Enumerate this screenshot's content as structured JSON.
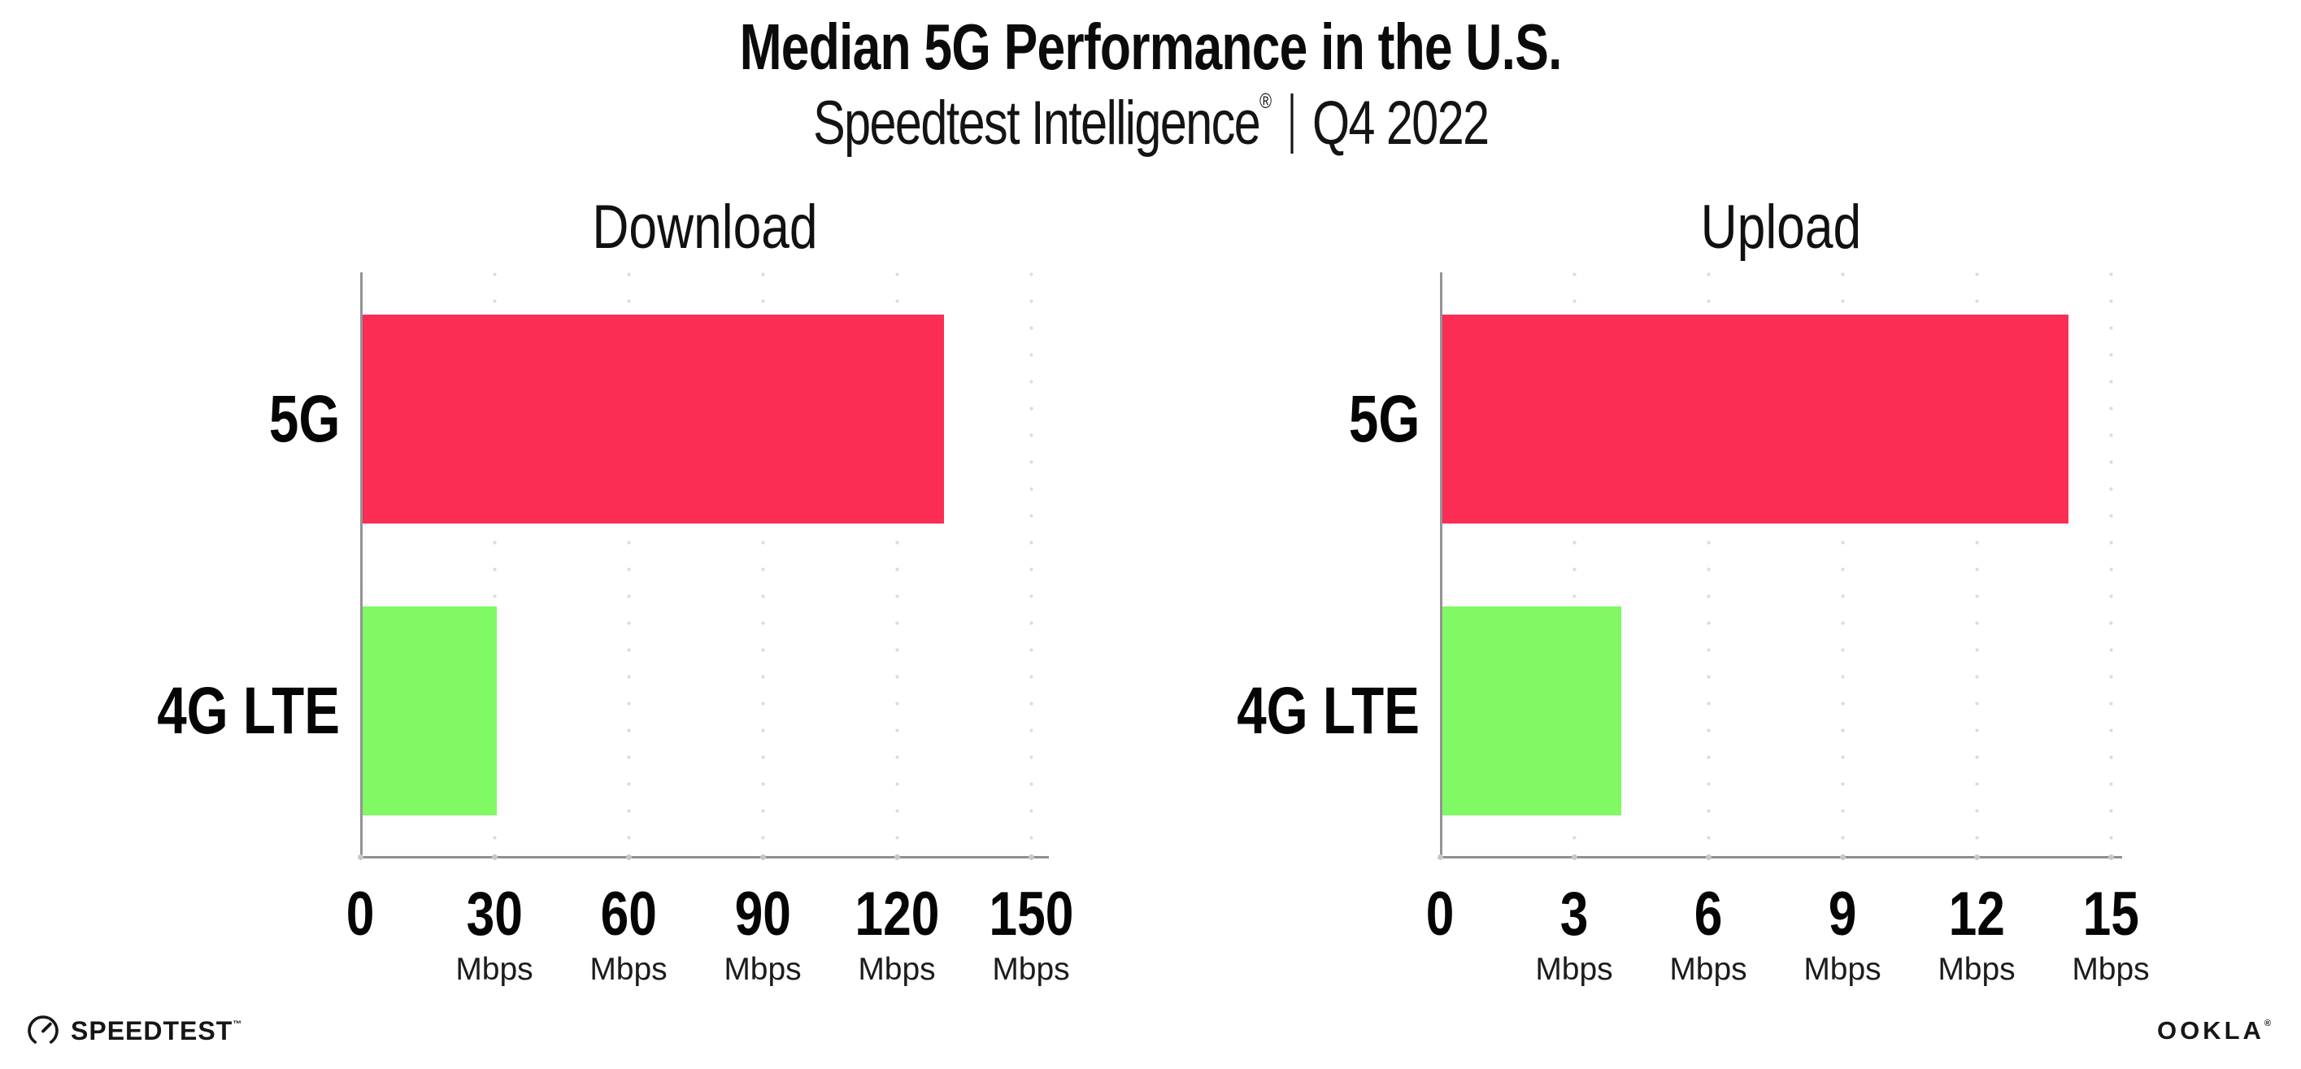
{
  "page": {
    "title": "Median 5G Performance in the U.S.",
    "subtitle_brand": "Speedtest Intelligence",
    "subtitle_reg": "®",
    "subtitle_period": "Q4 2022"
  },
  "chart_data": [
    {
      "type": "bar",
      "orientation": "horizontal",
      "title": "Download",
      "categories": [
        "5G",
        "4G LTE"
      ],
      "values": [
        130,
        30
      ],
      "unit": "Mbps",
      "xlim": [
        0,
        150
      ],
      "xticks": [
        0,
        30,
        60,
        90,
        120,
        150
      ],
      "bar_colors": [
        "#FC2D55",
        "#80F964"
      ],
      "grid": "dotted-vertical",
      "legend": "none"
    },
    {
      "type": "bar",
      "orientation": "horizontal",
      "title": "Upload",
      "categories": [
        "5G",
        "4G LTE"
      ],
      "values": [
        14,
        4
      ],
      "unit": "Mbps",
      "xlim": [
        0,
        15
      ],
      "xticks": [
        0,
        3,
        6,
        9,
        12,
        15
      ],
      "bar_colors": [
        "#FC2D55",
        "#80F964"
      ],
      "grid": "dotted-vertical",
      "legend": "none"
    }
  ],
  "colors": {
    "bar_5g": "#FC2D55",
    "bar_4g_lte": "#80F964",
    "gridline": "#DBDBE5",
    "axis": "#8F8F8F",
    "text": "#0B0B0B"
  },
  "footer": {
    "speedtest_label": "SPEEDTEST",
    "speedtest_tm": "™",
    "ookla_label": "OOKLA",
    "ookla_reg": "®"
  }
}
